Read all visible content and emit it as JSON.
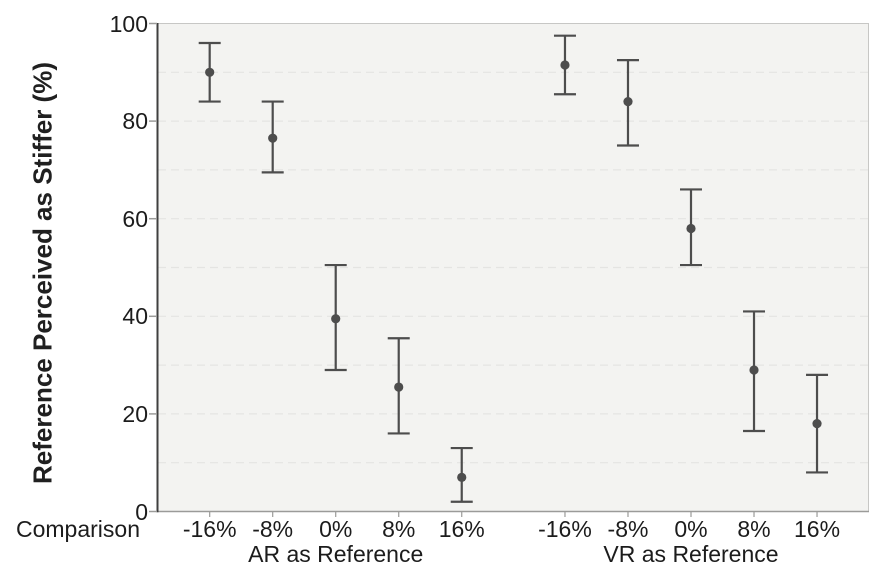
{
  "chart_data": {
    "type": "scatter",
    "subtype": "point-estimates-with-error-bars",
    "title": "",
    "ylabel": "Reference Perceived as Stiffer (%)",
    "xlabel": "Comparison",
    "ylim": [
      0,
      100
    ],
    "yticks": [
      0,
      20,
      40,
      60,
      80,
      100
    ],
    "grid": {
      "visible": true,
      "step": 10,
      "style": "dashed",
      "orientation": "horizontal"
    },
    "legend": {
      "visible": false
    },
    "groups": [
      {
        "label": "AR as Reference",
        "categories": [
          "-16%",
          "-8%",
          "0%",
          "8%",
          "16%"
        ],
        "points": [
          {
            "category": "-16%",
            "mean": 90,
            "ci_low": 84,
            "ci_high": 96
          },
          {
            "category": "-8%",
            "mean": 76.5,
            "ci_low": 69.5,
            "ci_high": 84
          },
          {
            "category": "0%",
            "mean": 39.5,
            "ci_low": 29,
            "ci_high": 50.5
          },
          {
            "category": "8%",
            "mean": 25.5,
            "ci_low": 16,
            "ci_high": 35.5
          },
          {
            "category": "16%",
            "mean": 7,
            "ci_low": 2,
            "ci_high": 13
          }
        ]
      },
      {
        "label": "VR as Reference",
        "categories": [
          "-16%",
          "-8%",
          "0%",
          "8%",
          "16%"
        ],
        "points": [
          {
            "category": "-16%",
            "mean": 91.5,
            "ci_low": 85.5,
            "ci_high": 97.5
          },
          {
            "category": "-8%",
            "mean": 84,
            "ci_low": 75,
            "ci_high": 92.5
          },
          {
            "category": "0%",
            "mean": 58,
            "ci_low": 50.5,
            "ci_high": 66
          },
          {
            "category": "8%",
            "mean": 29,
            "ci_low": 16.5,
            "ci_high": 41
          },
          {
            "category": "16%",
            "mean": 18,
            "ci_low": 8,
            "ci_high": 28
          }
        ]
      }
    ],
    "colors": {
      "marker": "#4d4d4d",
      "error_bar": "#4d4d4d",
      "panel_background": "#f3f3f1",
      "gridline": "#e4e4e2",
      "panel_border": "#c7c7c5",
      "y_axis_line": "#3f3f3f",
      "x_axis_line": "#9b9b99",
      "tick_mark": "#9b9b99",
      "text": "#1c1c1c"
    }
  }
}
